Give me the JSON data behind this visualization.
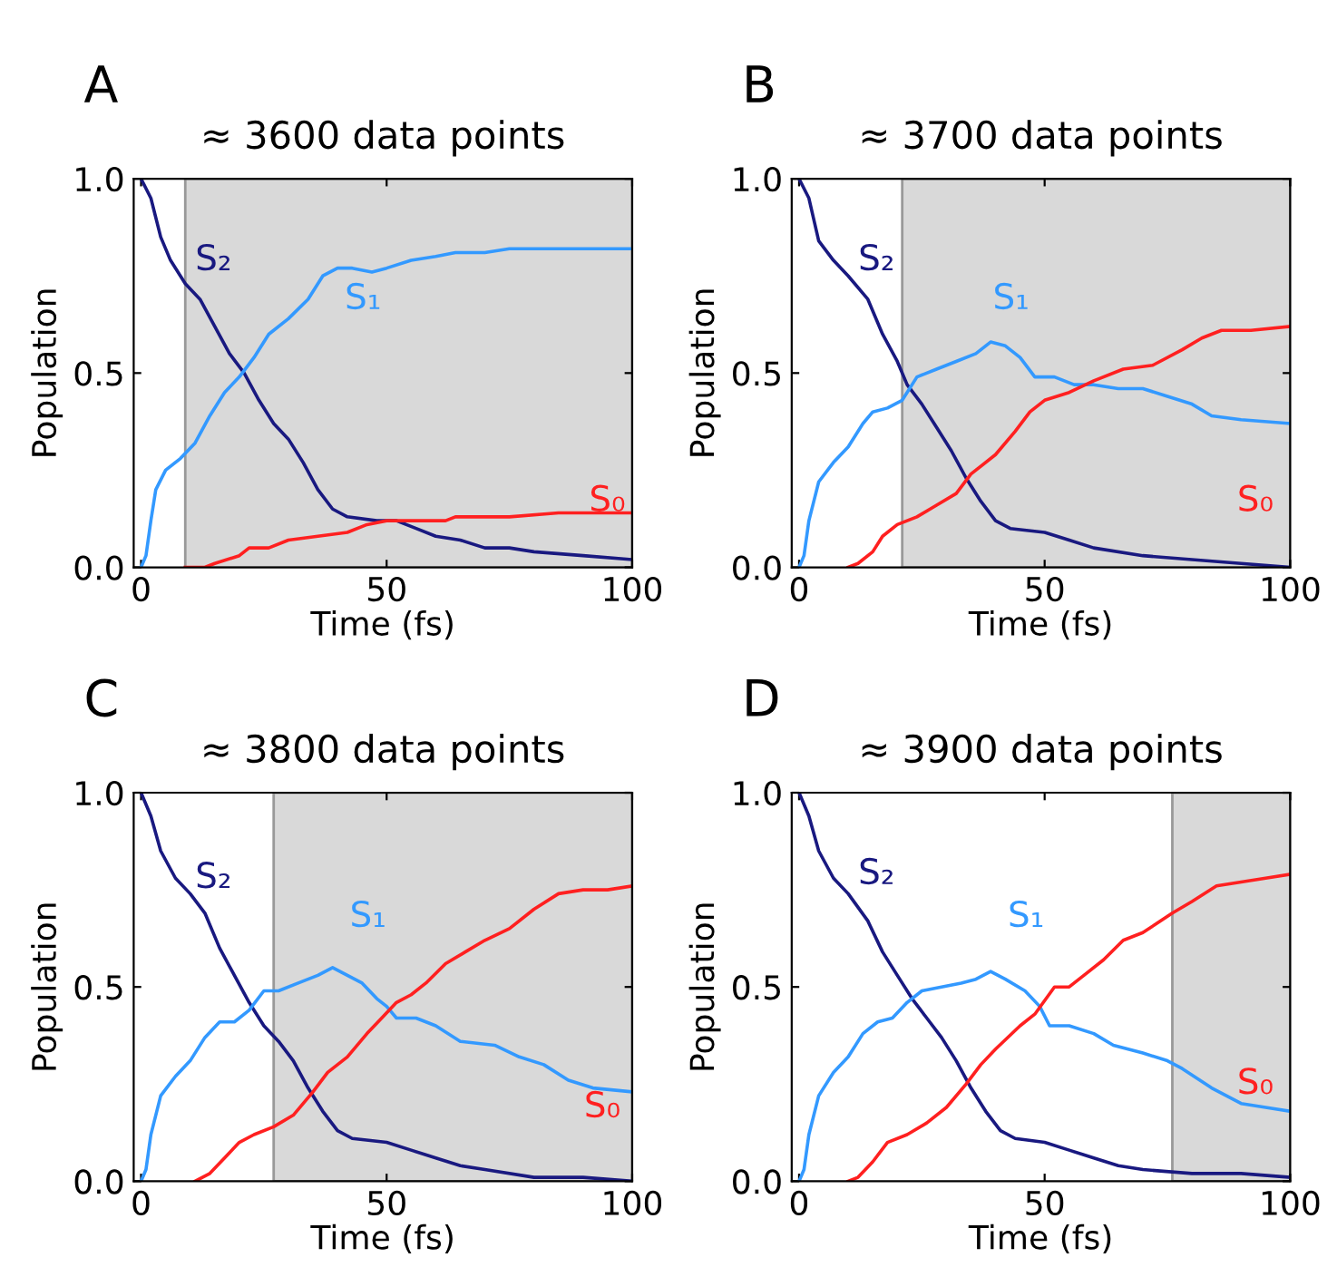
{
  "chart_data": [
    {
      "type": "line",
      "title": "≈ 3600 data points",
      "xlabel": "Time (fs)",
      "ylabel": "Population",
      "annotations": [
        "A"
      ],
      "xlim": [
        -1.5,
        100
      ],
      "ylim": [
        0,
        1
      ],
      "xticks": [
        0,
        50,
        100
      ],
      "yticks": [
        {
          "value": 0,
          "label": "0.0"
        },
        {
          "value": 0.5,
          "label": "0.5"
        },
        {
          "value": 1,
          "label": "1.0"
        }
      ],
      "grid": false,
      "legend": false,
      "bands": [
        {
          "axis": "x",
          "from": 9,
          "to": 100,
          "color": "#d9d9d9"
        }
      ],
      "series": [
        {
          "name": "S₂",
          "color": "#191980",
          "x": [
            0,
            2,
            4,
            6,
            9,
            12,
            15,
            18,
            21,
            24,
            27,
            30,
            33,
            36,
            39,
            42,
            48,
            52,
            56,
            60,
            65,
            70,
            75,
            80,
            90,
            100
          ],
          "values": [
            1.0,
            0.95,
            0.85,
            0.79,
            0.73,
            0.69,
            0.62,
            0.55,
            0.5,
            0.43,
            0.37,
            0.33,
            0.27,
            0.2,
            0.15,
            0.13,
            0.12,
            0.12,
            0.1,
            0.08,
            0.07,
            0.05,
            0.05,
            0.04,
            0.03,
            0.02
          ]
        },
        {
          "name": "S₁",
          "color": "#3399ff",
          "x": [
            0,
            1,
            2,
            3,
            5,
            8,
            11,
            14,
            17,
            20,
            23,
            26,
            30,
            34,
            37,
            40,
            43,
            47,
            50,
            55,
            60,
            64,
            70,
            75,
            85,
            100
          ],
          "values": [
            0.0,
            0.03,
            0.12,
            0.2,
            0.25,
            0.28,
            0.32,
            0.39,
            0.45,
            0.49,
            0.54,
            0.6,
            0.64,
            0.69,
            0.75,
            0.77,
            0.77,
            0.76,
            0.77,
            0.79,
            0.8,
            0.81,
            0.81,
            0.82,
            0.82,
            0.82
          ]
        },
        {
          "name": "S₀",
          "color": "#ff2020",
          "x": [
            9,
            13,
            15,
            20,
            22,
            26,
            30,
            36,
            42,
            46,
            50,
            55,
            62,
            64,
            75,
            85,
            100
          ],
          "values": [
            0.0,
            0.0,
            0.01,
            0.03,
            0.05,
            0.05,
            0.07,
            0.08,
            0.09,
            0.11,
            0.12,
            0.12,
            0.12,
            0.13,
            0.13,
            0.14,
            0.14
          ]
        }
      ]
    },
    {
      "type": "line",
      "title": "≈ 3700 data points",
      "xlabel": "Time (fs)",
      "ylabel": "Population",
      "annotations": [
        "B"
      ],
      "xlim": [
        -1.5,
        100
      ],
      "ylim": [
        0,
        1
      ],
      "xticks": [
        0,
        50,
        100
      ],
      "yticks": [
        {
          "value": 0,
          "label": "0.0"
        },
        {
          "value": 0.5,
          "label": "0.5"
        },
        {
          "value": 1,
          "label": "1.0"
        }
      ],
      "grid": false,
      "legend": false,
      "bands": [
        {
          "axis": "x",
          "from": 21,
          "to": 100,
          "color": "#d9d9d9"
        }
      ],
      "series": [
        {
          "name": "S₂",
          "color": "#191980",
          "x": [
            0,
            2,
            4,
            7,
            10,
            14,
            17,
            20,
            22,
            25,
            28,
            31,
            34,
            37,
            40,
            43,
            50,
            55,
            60,
            70,
            80,
            90,
            100
          ],
          "values": [
            1.0,
            0.95,
            0.84,
            0.79,
            0.75,
            0.69,
            0.6,
            0.53,
            0.47,
            0.42,
            0.36,
            0.3,
            0.23,
            0.17,
            0.12,
            0.1,
            0.09,
            0.07,
            0.05,
            0.03,
            0.02,
            0.01,
            0.0
          ]
        },
        {
          "name": "S₁",
          "color": "#3399ff",
          "x": [
            0,
            1,
            2,
            4,
            7,
            10,
            13,
            15,
            18,
            21,
            24,
            28,
            32,
            36,
            39,
            42,
            45,
            48,
            52,
            56,
            60,
            65,
            70,
            75,
            80,
            84,
            90,
            100
          ],
          "values": [
            0.0,
            0.03,
            0.12,
            0.22,
            0.27,
            0.31,
            0.37,
            0.4,
            0.41,
            0.43,
            0.49,
            0.51,
            0.53,
            0.55,
            0.58,
            0.57,
            0.54,
            0.49,
            0.49,
            0.47,
            0.47,
            0.46,
            0.46,
            0.44,
            0.42,
            0.39,
            0.38,
            0.37
          ]
        },
        {
          "name": "S₀",
          "color": "#ff2020",
          "x": [
            10,
            12,
            15,
            17,
            20,
            24,
            28,
            32,
            35,
            40,
            44,
            47,
            50,
            55,
            60,
            66,
            72,
            78,
            82,
            86,
            92,
            100
          ],
          "values": [
            0.0,
            0.01,
            0.04,
            0.08,
            0.11,
            0.13,
            0.16,
            0.19,
            0.24,
            0.29,
            0.35,
            0.4,
            0.43,
            0.45,
            0.48,
            0.51,
            0.52,
            0.56,
            0.59,
            0.61,
            0.61,
            0.62
          ]
        }
      ]
    },
    {
      "type": "line",
      "title": "≈ 3800 data points",
      "xlabel": "Time (fs)",
      "ylabel": "Population",
      "annotations": [
        "C"
      ],
      "xlim": [
        -1.5,
        100
      ],
      "ylim": [
        0,
        1
      ],
      "xticks": [
        0,
        50,
        100
      ],
      "yticks": [
        {
          "value": 0,
          "label": "0.0"
        },
        {
          "value": 0.5,
          "label": "0.5"
        },
        {
          "value": 1,
          "label": "1.0"
        }
      ],
      "grid": false,
      "legend": false,
      "bands": [
        {
          "axis": "x",
          "from": 27,
          "to": 100,
          "color": "#d9d9d9"
        }
      ],
      "series": [
        {
          "name": "S₂",
          "color": "#191980",
          "x": [
            0,
            2,
            4,
            7,
            10,
            13,
            16,
            19,
            22,
            25,
            28,
            31,
            34,
            37,
            40,
            43,
            50,
            55,
            60,
            65,
            70,
            80,
            90,
            100
          ],
          "values": [
            1.0,
            0.94,
            0.85,
            0.78,
            0.74,
            0.69,
            0.6,
            0.53,
            0.46,
            0.4,
            0.36,
            0.31,
            0.24,
            0.18,
            0.13,
            0.11,
            0.1,
            0.08,
            0.06,
            0.04,
            0.03,
            0.01,
            0.01,
            0.0
          ]
        },
        {
          "name": "S₁",
          "color": "#3399ff",
          "x": [
            0,
            1,
            2,
            4,
            7,
            10,
            13,
            16,
            19,
            22,
            25,
            28,
            32,
            36,
            39,
            42,
            45,
            48,
            50,
            52,
            56,
            60,
            65,
            72,
            77,
            82,
            87,
            92,
            100
          ],
          "values": [
            0.0,
            0.03,
            0.12,
            0.22,
            0.27,
            0.31,
            0.37,
            0.41,
            0.41,
            0.44,
            0.49,
            0.49,
            0.51,
            0.53,
            0.55,
            0.53,
            0.51,
            0.47,
            0.45,
            0.42,
            0.42,
            0.4,
            0.36,
            0.35,
            0.32,
            0.3,
            0.26,
            0.24,
            0.23
          ]
        },
        {
          "name": "S₀",
          "color": "#ff2020",
          "x": [
            11,
            14,
            17,
            20,
            23,
            27,
            31,
            35,
            38,
            42,
            46,
            49,
            52,
            55,
            58,
            62,
            66,
            70,
            75,
            80,
            85,
            90,
            95,
            100
          ],
          "values": [
            0.0,
            0.02,
            0.06,
            0.1,
            0.12,
            0.14,
            0.17,
            0.23,
            0.28,
            0.32,
            0.38,
            0.42,
            0.46,
            0.48,
            0.51,
            0.56,
            0.59,
            0.62,
            0.65,
            0.7,
            0.74,
            0.75,
            0.75,
            0.76
          ]
        }
      ]
    },
    {
      "type": "line",
      "title": "≈ 3900 data points",
      "xlabel": "Time (fs)",
      "ylabel": "Population",
      "annotations": [
        "D"
      ],
      "xlim": [
        -1.5,
        100
      ],
      "ylim": [
        0,
        1
      ],
      "xticks": [
        0,
        50,
        100
      ],
      "yticks": [
        {
          "value": 0,
          "label": "0.0"
        },
        {
          "value": 0.5,
          "label": "0.5"
        },
        {
          "value": 1,
          "label": "1.0"
        }
      ],
      "grid": false,
      "legend": false,
      "bands": [
        {
          "axis": "x",
          "from": 76,
          "to": 100,
          "color": "#d9d9d9"
        }
      ],
      "series": [
        {
          "name": "S₂",
          "color": "#191980",
          "x": [
            0,
            2,
            4,
            7,
            10,
            14,
            17,
            20,
            23,
            26,
            29,
            32,
            35,
            38,
            41,
            44,
            50,
            55,
            60,
            65,
            70,
            80,
            90,
            100
          ],
          "values": [
            1.0,
            0.94,
            0.85,
            0.78,
            0.74,
            0.67,
            0.59,
            0.53,
            0.47,
            0.42,
            0.37,
            0.31,
            0.24,
            0.18,
            0.13,
            0.11,
            0.1,
            0.08,
            0.06,
            0.04,
            0.03,
            0.02,
            0.02,
            0.01
          ]
        },
        {
          "name": "S₁",
          "color": "#3399ff",
          "x": [
            0,
            1,
            2,
            4,
            7,
            10,
            13,
            16,
            19,
            22,
            25,
            29,
            33,
            36,
            39,
            42,
            46,
            49,
            51,
            55,
            60,
            64,
            70,
            75,
            78,
            84,
            90,
            95,
            100
          ],
          "values": [
            0.0,
            0.03,
            0.12,
            0.22,
            0.28,
            0.32,
            0.38,
            0.41,
            0.42,
            0.46,
            0.49,
            0.5,
            0.51,
            0.52,
            0.54,
            0.52,
            0.49,
            0.45,
            0.4,
            0.4,
            0.38,
            0.35,
            0.33,
            0.31,
            0.29,
            0.24,
            0.2,
            0.19,
            0.18
          ]
        },
        {
          "name": "S₀",
          "color": "#ff2020",
          "x": [
            10,
            12,
            15,
            18,
            22,
            26,
            30,
            34,
            37,
            40,
            45,
            48,
            52,
            55,
            58,
            62,
            66,
            70,
            76,
            80,
            85,
            90,
            95,
            100
          ],
          "values": [
            0.0,
            0.01,
            0.05,
            0.1,
            0.12,
            0.15,
            0.19,
            0.25,
            0.3,
            0.34,
            0.4,
            0.43,
            0.5,
            0.5,
            0.53,
            0.57,
            0.62,
            0.64,
            0.69,
            0.72,
            0.76,
            0.77,
            0.78,
            0.79
          ]
        }
      ]
    }
  ]
}
